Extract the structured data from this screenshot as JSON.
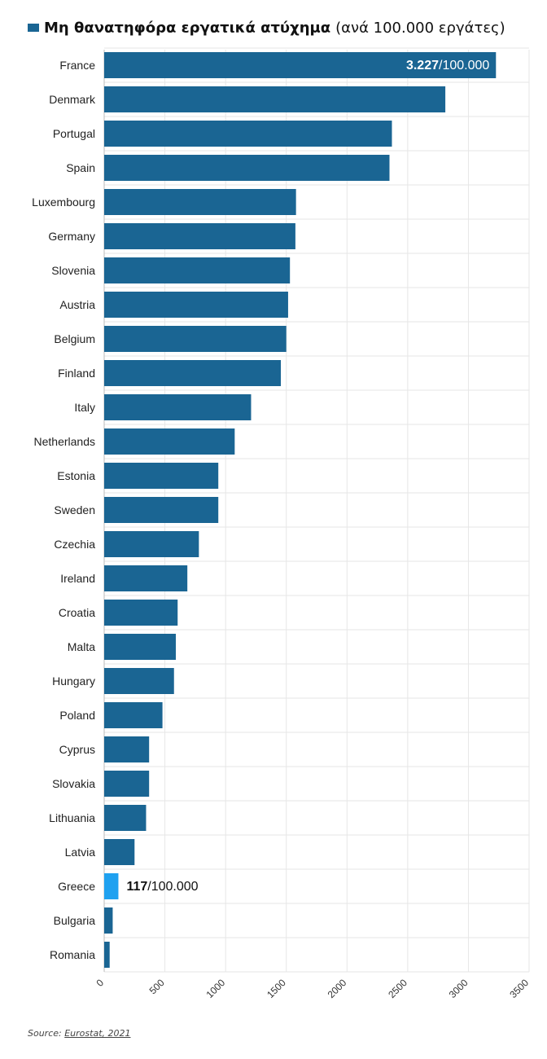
{
  "legend": {
    "title": "Μη θανατηφόρα εργατικά ατύχημα",
    "subtitle": "(ανά 100.000 εργάτες)"
  },
  "source": {
    "label": "Source:",
    "name": "Eurostat, 2021"
  },
  "colors": {
    "bar": "#1a6593",
    "highlight": "#1fa1f0",
    "grid": "#e6e6e6",
    "axis": "#bbbbbb"
  },
  "chart_data": {
    "type": "bar",
    "orientation": "horizontal",
    "categories": [
      "France",
      "Denmark",
      "Portugal",
      "Spain",
      "Luxembourg",
      "Germany",
      "Slovenia",
      "Austria",
      "Belgium",
      "Finland",
      "Italy",
      "Netherlands",
      "Estonia",
      "Sweden",
      "Czechia",
      "Ireland",
      "Croatia",
      "Malta",
      "Hungary",
      "Poland",
      "Cyprus",
      "Slovakia",
      "Lithuania",
      "Latvia",
      "Greece",
      "Bulgaria",
      "Romania"
    ],
    "values": [
      3227,
      2810,
      2370,
      2350,
      1580,
      1575,
      1530,
      1515,
      1500,
      1455,
      1210,
      1075,
      940,
      940,
      780,
      685,
      605,
      590,
      575,
      480,
      370,
      370,
      345,
      250,
      117,
      70,
      45
    ],
    "highlight": "Greece",
    "xlim": [
      0,
      3500
    ],
    "xticks": [
      0,
      500,
      1000,
      1500,
      2000,
      2500,
      3000,
      3500
    ],
    "grid": true,
    "annotations": [
      {
        "category": "France",
        "bold": "3.227",
        "rest": "/100.000",
        "position": "inside-end"
      },
      {
        "category": "Greece",
        "bold": "117",
        "rest": "/100.000",
        "position": "outside-end"
      }
    ]
  }
}
